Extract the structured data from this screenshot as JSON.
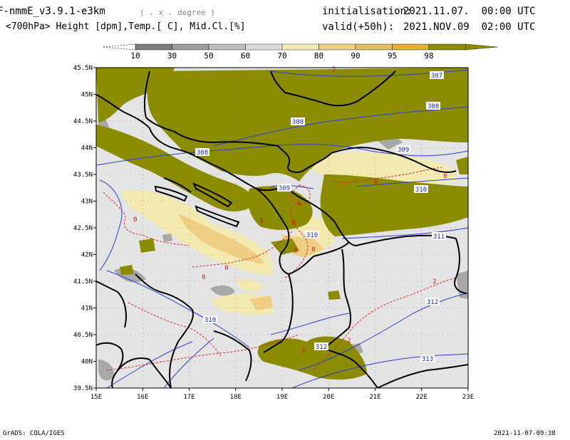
{
  "header": {
    "model": "F-nmmE_v3.9.1-e3km",
    "unit_hint": "( . x . degree )",
    "variables": "<700hPa> Height [dpm],Temp.[ C], Mid.Cl.[%]",
    "init_label": "initialisation:",
    "init_value": "2021.11.07.  00:00 UTC",
    "valid_label": "valid(+50h):",
    "valid_value": "2021.NOV.09  02:00 UTC"
  },
  "colorbar": {
    "levels": [
      "10",
      "30",
      "50",
      "60",
      "70",
      "80",
      "90",
      "95",
      "98"
    ],
    "colors": [
      "#5a5a5a",
      "#7d7d7d",
      "#9d9d9d",
      "#bcbcbc",
      "#dcdcdc",
      "#f2eab0",
      "#f0cf85",
      "#e7bc62",
      "#e6ae2e",
      "#8c8c00"
    ]
  },
  "axes": {
    "lat_ticks": [
      "45.5N",
      "45N",
      "44.5N",
      "44N",
      "43.5N",
      "43N",
      "42.5N",
      "42N",
      "41.5N",
      "41N",
      "40.5N",
      "40N",
      "39.5N"
    ],
    "lon_ticks": [
      "15E",
      "16E",
      "17E",
      "18E",
      "19E",
      "20E",
      "21E",
      "22E",
      "23E"
    ]
  },
  "height_labels": [
    "307",
    "308",
    "308",
    "308",
    "309",
    "309",
    "310",
    "310",
    "310",
    "311",
    "312",
    "312",
    "313"
  ],
  "temp_labels": [
    "-2",
    "0",
    "0",
    "0",
    "0",
    "0",
    "0",
    "0",
    "0",
    "0",
    "2",
    "2",
    "2",
    "0"
  ],
  "footer": {
    "left": "GrADS: COLA/IGES",
    "right": "2021-11-07-09:38"
  }
}
